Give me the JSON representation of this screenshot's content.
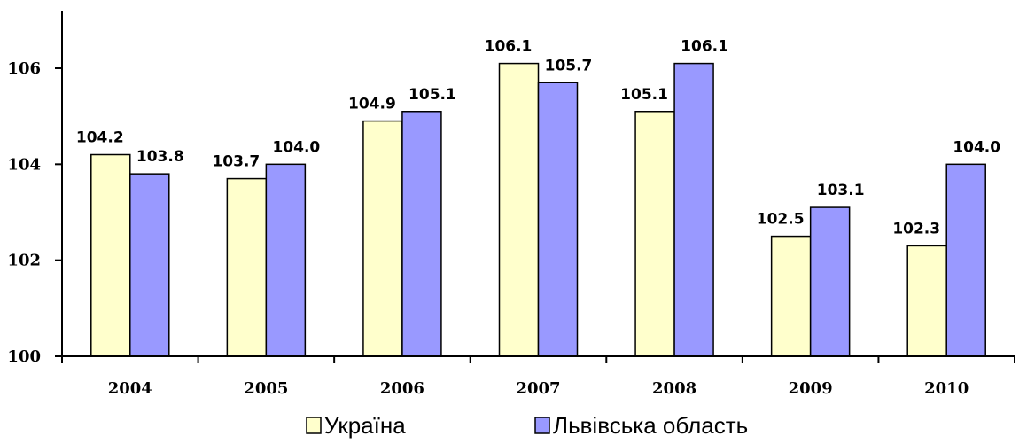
{
  "chart_data": {
    "type": "bar",
    "categories": [
      "2004",
      "2005",
      "2006",
      "2007",
      "2008",
      "2009",
      "2010"
    ],
    "series": [
      {
        "name": "Україна",
        "values": [
          104.2,
          103.7,
          104.9,
          106.1,
          105.1,
          102.5,
          102.3
        ],
        "labels": [
          "104.2",
          "103.7",
          "104.9",
          "106.1",
          "105.1",
          "102.5",
          "102.3"
        ],
        "color": "#FFFFCC"
      },
      {
        "name": "Львівська область",
        "values": [
          103.8,
          104.0,
          105.1,
          105.7,
          106.1,
          103.1,
          104.0
        ],
        "labels": [
          "103.8",
          "104.0",
          "105.1",
          "105.7",
          "106.1",
          "103.1",
          "104.0"
        ],
        "color": "#9999FF"
      }
    ],
    "ylim": [
      100,
      107.2
    ],
    "yticks": [
      100,
      102,
      104,
      106
    ],
    "ytick_labels": [
      "100",
      "102",
      "104",
      "106"
    ],
    "grid": false,
    "legend_position": "bottom"
  }
}
